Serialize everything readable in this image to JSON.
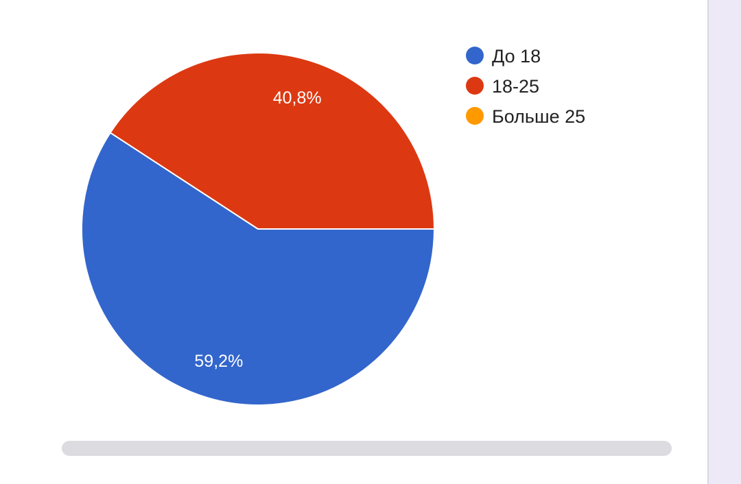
{
  "chart_data": {
    "type": "pie",
    "legend_position": "right",
    "slices": [
      {
        "name": "До 18",
        "value": 59.2,
        "label": "59,2%",
        "color": "#3366cc"
      },
      {
        "name": "18-25",
        "value": 40.8,
        "label": "40,8%",
        "color": "#dc3912"
      },
      {
        "name": "Больше 25",
        "value": 0,
        "label": "",
        "color": "#ff9900"
      }
    ]
  }
}
